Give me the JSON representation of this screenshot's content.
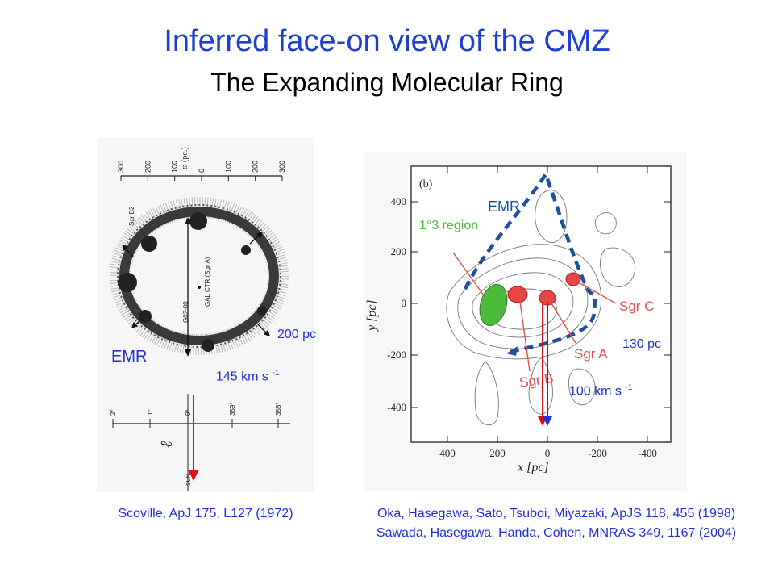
{
  "slide": {
    "title": "Inferred face-on view of the CMZ",
    "subtitle": "The Expanding Molecular Ring"
  },
  "left_figure": {
    "labels": {
      "emr": "EMR",
      "radius": "200 pc",
      "velocity_value": "145 km s",
      "velocity_exp": "-1"
    },
    "figure_text": {
      "axis_title": "ϖ (pc.)",
      "top_ticks": [
        "300",
        "200",
        "100",
        "0",
        "100",
        "200",
        "300"
      ],
      "sgr_b2": "Sgr B2",
      "gal_ctr": "GAL CTR (Sgr A)",
      "g02": "G02-00",
      "l_symbol": "ℓ",
      "bottom_ticks": [
        "2°",
        "1°",
        "0°",
        "359°",
        "358°"
      ],
      "sun": "SUN"
    },
    "reference": "Scoville, ApJ 175, L127 (1972)"
  },
  "right_figure": {
    "labels": {
      "panel": "(b)",
      "emr": "EMR",
      "region": "1°3 region",
      "sgr_c": "Sgr C",
      "sgr_a": "Sgr A",
      "sgr_b": "Sgr B",
      "radius": "130 pc",
      "velocity_value": "100 km s",
      "velocity_exp": "-1"
    },
    "x_axis": {
      "label": "x [pc]",
      "ticks": [
        "400",
        "200",
        "0",
        "-200",
        "-400"
      ]
    },
    "y_axis": {
      "label": "y [pc]",
      "ticks": [
        "400",
        "200",
        "0",
        "-200",
        "-400"
      ]
    },
    "references": [
      "Oka, Hasegawa, Sato, Tsuboi, Miyazaki, ApJS 118, 455 (1998)",
      "Sawada, Hasegawa, Handa, Cohen, MNRAS 349, 1167 (2004)"
    ]
  },
  "colors": {
    "title": "#1f3fd0",
    "label": "#1f2fd8",
    "emr_dash": "#1e4fa0",
    "sgr_marker": "#e84545",
    "region_marker": "#4dbb3a",
    "arrow_red": "#dd1111",
    "arrow_blue": "#2233dd"
  }
}
